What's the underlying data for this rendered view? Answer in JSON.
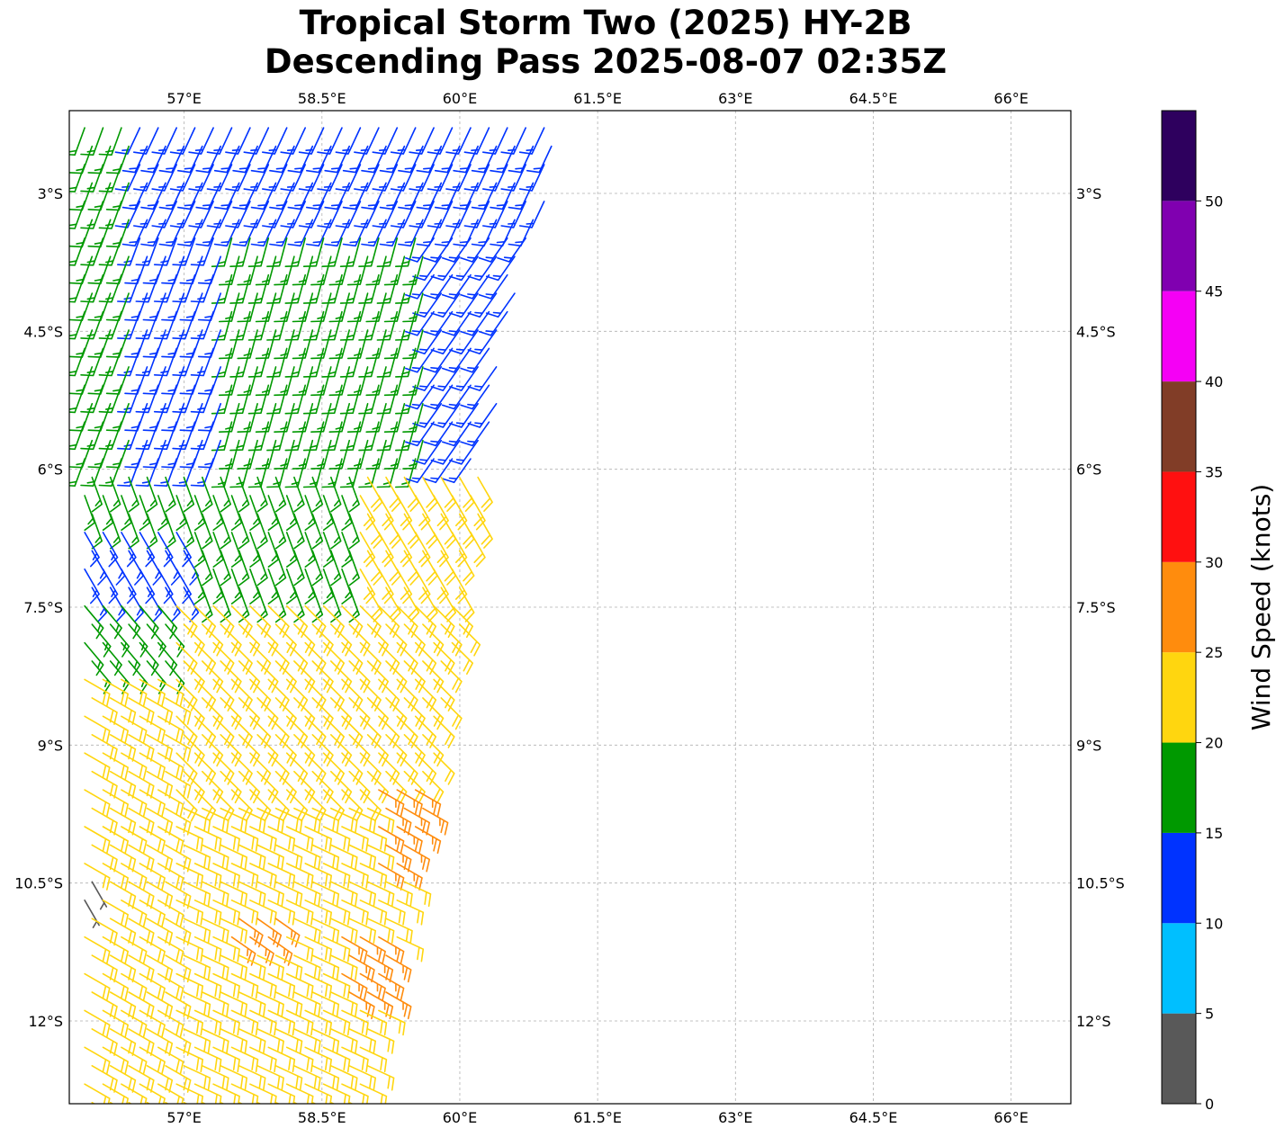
{
  "title_line1": "Tropical Storm Two (2025) HY-2B",
  "title_line2": "Descending Pass 2025-08-07 02:35Z",
  "map": {
    "lon_range": [
      55.75,
      66.65
    ],
    "lat_range": [
      -12.9,
      -2.1
    ],
    "lon_ticks": [
      {
        "value": 57.0,
        "label": "57°E"
      },
      {
        "value": 58.5,
        "label": "58.5°E"
      },
      {
        "value": 60.0,
        "label": "60°E"
      },
      {
        "value": 61.5,
        "label": "61.5°E"
      },
      {
        "value": 63.0,
        "label": "63°E"
      },
      {
        "value": 64.5,
        "label": "64.5°E"
      },
      {
        "value": 66.0,
        "label": "66°E"
      }
    ],
    "lat_ticks": [
      {
        "value": -3.0,
        "label": "3°S"
      },
      {
        "value": -4.5,
        "label": "4.5°S"
      },
      {
        "value": -6.0,
        "label": "6°S"
      },
      {
        "value": -7.5,
        "label": "7.5°S"
      },
      {
        "value": -9.0,
        "label": "9°S"
      },
      {
        "value": -10.5,
        "label": "10.5°S"
      },
      {
        "value": -12.0,
        "label": "12°S"
      }
    ],
    "gridlines": true
  },
  "colorbar": {
    "label": "Wind Speed (knots)",
    "ticks": [
      "0",
      "5",
      "10",
      "15",
      "20",
      "25",
      "30",
      "35",
      "40",
      "45",
      "50"
    ],
    "bins": [
      {
        "min": 0,
        "max": 5,
        "color": "#595959"
      },
      {
        "min": 5,
        "max": 10,
        "color": "#00bfff"
      },
      {
        "min": 10,
        "max": 15,
        "color": "#0033ff"
      },
      {
        "min": 15,
        "max": 20,
        "color": "#009900"
      },
      {
        "min": 20,
        "max": 25,
        "color": "#ffd60f"
      },
      {
        "min": 25,
        "max": 30,
        "color": "#ff8c0d"
      },
      {
        "min": 30,
        "max": 35,
        "color": "#ff1010"
      },
      {
        "min": 35,
        "max": 40,
        "color": "#813d27"
      },
      {
        "min": 40,
        "max": 45,
        "color": "#f500f5"
      },
      {
        "min": 45,
        "max": 50,
        "color": "#8000b0"
      },
      {
        "min": 50,
        "max": 55,
        "color": "#2e005e"
      }
    ]
  },
  "chart_data": {
    "type": "wind-barbs",
    "units": "knots",
    "swath_east_edge": [
      {
        "lat": -2.1,
        "lon": 61.0
      },
      {
        "lat": -3.0,
        "lon": 60.8
      },
      {
        "lat": -4.5,
        "lon": 60.4
      },
      {
        "lat": -6.0,
        "lon": 60.15
      },
      {
        "lat": -7.5,
        "lon": 59.9
      },
      {
        "lat": -9.0,
        "lon": 59.6
      },
      {
        "lat": -10.5,
        "lon": 59.3
      },
      {
        "lat": -12.0,
        "lon": 59.0
      },
      {
        "lat": -12.9,
        "lon": 58.85
      }
    ],
    "regions": [
      {
        "lat_from": -2.1,
        "lat_to": -5.9,
        "lon_from": 55.75,
        "lon_to": 56.3,
        "speed": 17,
        "direction_from": 200
      },
      {
        "lat_from": -2.1,
        "lat_to": -3.3,
        "lon_from": 56.3,
        "lon_to": 61.0,
        "speed": 13,
        "direction_from": 205
      },
      {
        "lat_from": -3.3,
        "lat_to": -5.9,
        "lon_from": 56.3,
        "lon_to": 57.3,
        "speed": 13,
        "direction_from": 200
      },
      {
        "lat_from": -3.3,
        "lat_to": -5.9,
        "lon_from": 57.3,
        "lon_to": 59.6,
        "speed": 17,
        "direction_from": 195
      },
      {
        "lat_from": -3.3,
        "lat_to": -5.9,
        "lon_from": 59.6,
        "lon_to": 61.0,
        "speed": 13,
        "direction_from": 215
      },
      {
        "lat_from": -5.9,
        "lat_to": -7.3,
        "lon_from": 55.75,
        "lon_to": 58.8,
        "speed": 17,
        "direction_from": 160
      },
      {
        "lat_from": -6.4,
        "lat_to": -7.3,
        "lon_from": 55.75,
        "lon_to": 56.9,
        "speed": 13,
        "direction_from": 150
      },
      {
        "lat_from": -5.9,
        "lat_to": -7.3,
        "lon_from": 58.8,
        "lon_to": 61.0,
        "speed": 22,
        "direction_from": 150
      },
      {
        "lat_from": -7.3,
        "lat_to": -8.0,
        "lon_from": 55.75,
        "lon_to": 56.7,
        "speed": 17,
        "direction_from": 140
      },
      {
        "lat_from": -7.3,
        "lat_to": -9.4,
        "lon_from": 56.7,
        "lon_to": 61.0,
        "speed": 22,
        "direction_from": 135
      },
      {
        "lat_from": -8.0,
        "lat_to": -12.9,
        "lon_from": 55.75,
        "lon_to": 56.7,
        "speed": 22,
        "direction_from": 120
      },
      {
        "lat_from": -9.4,
        "lat_to": -12.9,
        "lon_from": 56.7,
        "lon_to": 61.0,
        "speed": 22,
        "direction_from": 115
      },
      {
        "lat_from": -9.3,
        "lat_to": -10.3,
        "lon_from": 59.0,
        "lon_to": 61.0,
        "speed": 27,
        "direction_from": 120
      },
      {
        "lat_from": -10.6,
        "lat_to": -11.1,
        "lon_from": 57.3,
        "lon_to": 57.9,
        "speed": 27,
        "direction_from": 125
      },
      {
        "lat_from": -10.8,
        "lat_to": -11.6,
        "lon_from": 58.6,
        "lon_to": 59.1,
        "speed": 27,
        "direction_from": 120
      },
      {
        "lat_from": -10.3,
        "lat_to": -10.7,
        "lon_from": 55.75,
        "lon_to": 55.95,
        "speed": 3,
        "direction_from": 150
      }
    ]
  }
}
